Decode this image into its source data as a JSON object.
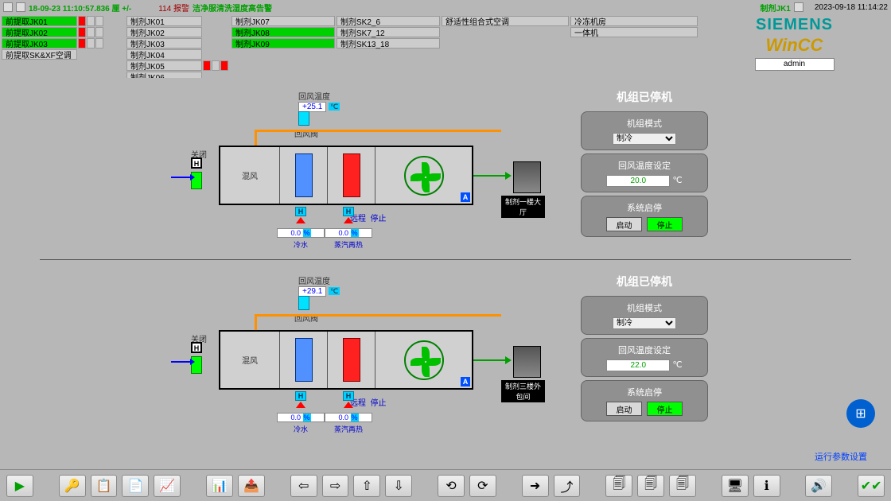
{
  "topbar": {
    "timestamp": "18-09-23  11:10:57.836  厘 +/-",
    "alarm_count": "114 报警",
    "alarm_text": "洁净服清洗湿度高告警",
    "right_title": "制剂JK1",
    "datetime": "2023-09-18 11:14:22"
  },
  "nav": {
    "col1": [
      {
        "label": "前提取JK01",
        "green": true,
        "inds": [
          "red",
          "gray",
          "gray"
        ]
      },
      {
        "label": "前提取JK02",
        "green": true,
        "inds": [
          "red",
          "gray",
          "gray"
        ]
      },
      {
        "label": "前提取JK03",
        "green": true,
        "inds": [
          "red",
          "gray",
          "gray"
        ]
      },
      {
        "label": "前提取SK&XF空调",
        "green": false
      }
    ],
    "col2": [
      "制剂JK01",
      "制剂JK02",
      "制剂JK03",
      "制剂JK04",
      "制剂JK05",
      "制剂JK06"
    ],
    "col2_ind_row": 4,
    "col3": [
      {
        "label": "制剂JK07",
        "green": false
      },
      {
        "label": "制剂JK08",
        "green": true
      },
      {
        "label": "制剂JK09",
        "green": true
      }
    ],
    "col4": [
      "制剂SK2_6",
      "制剂SK7_12",
      "制剂SK13_18"
    ],
    "col5_header": "舒适性组合式空调",
    "col6": [
      "冷冻机房",
      "一体机"
    ],
    "brand": "SIEMENS",
    "brand_sub": "WinCC",
    "user": "admin"
  },
  "units": [
    {
      "title": "机组已停机",
      "return_temp_label": "回风温度",
      "return_temp_val": "+25.1",
      "return_damper_label": "回风阀",
      "inlet_label": "关闭",
      "mixing_label": "混风",
      "remote_label": "远程",
      "stop_label": "停止",
      "room_label": "制剂一楼大厅",
      "valve1_label": "冷水",
      "valve2_label": "蒸汽再热",
      "valve_pct": "0.0",
      "pct_unit": "%",
      "mode_label": "机组模式",
      "mode_value": "制冷",
      "temp_set_label": "回风温度设定",
      "temp_set_val": "20.0",
      "temp_unit": "℃",
      "sys_label": "系统启停",
      "start_btn": "启动",
      "stop_btn": "停止"
    },
    {
      "title": "机组已停机",
      "return_temp_label": "回风温度",
      "return_temp_val": "+29.1",
      "return_damper_label": "回风阀",
      "inlet_label": "关闭",
      "mixing_label": "混风",
      "remote_label": "远程",
      "stop_label": "停止",
      "room_label": "制剂三楼外包间",
      "valve1_label": "冷水",
      "valve2_label": "蒸汽再热",
      "valve_pct": "0.0",
      "pct_unit": "%",
      "mode_label": "机组模式",
      "mode_value": "制冷",
      "temp_set_label": "回风温度设定",
      "temp_set_val": "22.0",
      "temp_unit": "℃",
      "sys_label": "系统启停",
      "start_btn": "启动",
      "stop_btn": "停止"
    }
  ],
  "bottom": {
    "runtime_link": "运行参数设置"
  },
  "colors": {
    "bg": "#b7b7b7",
    "active_green": "#00d000",
    "alarm_red": "#ff0000",
    "brand_teal": "#009999",
    "brand_gold": "#cc9900",
    "coil_blue": "#5090ff",
    "coil_red": "#ff2020",
    "fan_green": "#00c000",
    "supply_green": "#00a000",
    "return_orange": "#ff9000",
    "value_blue": "#0000ff",
    "panel_gray": "#909090"
  }
}
